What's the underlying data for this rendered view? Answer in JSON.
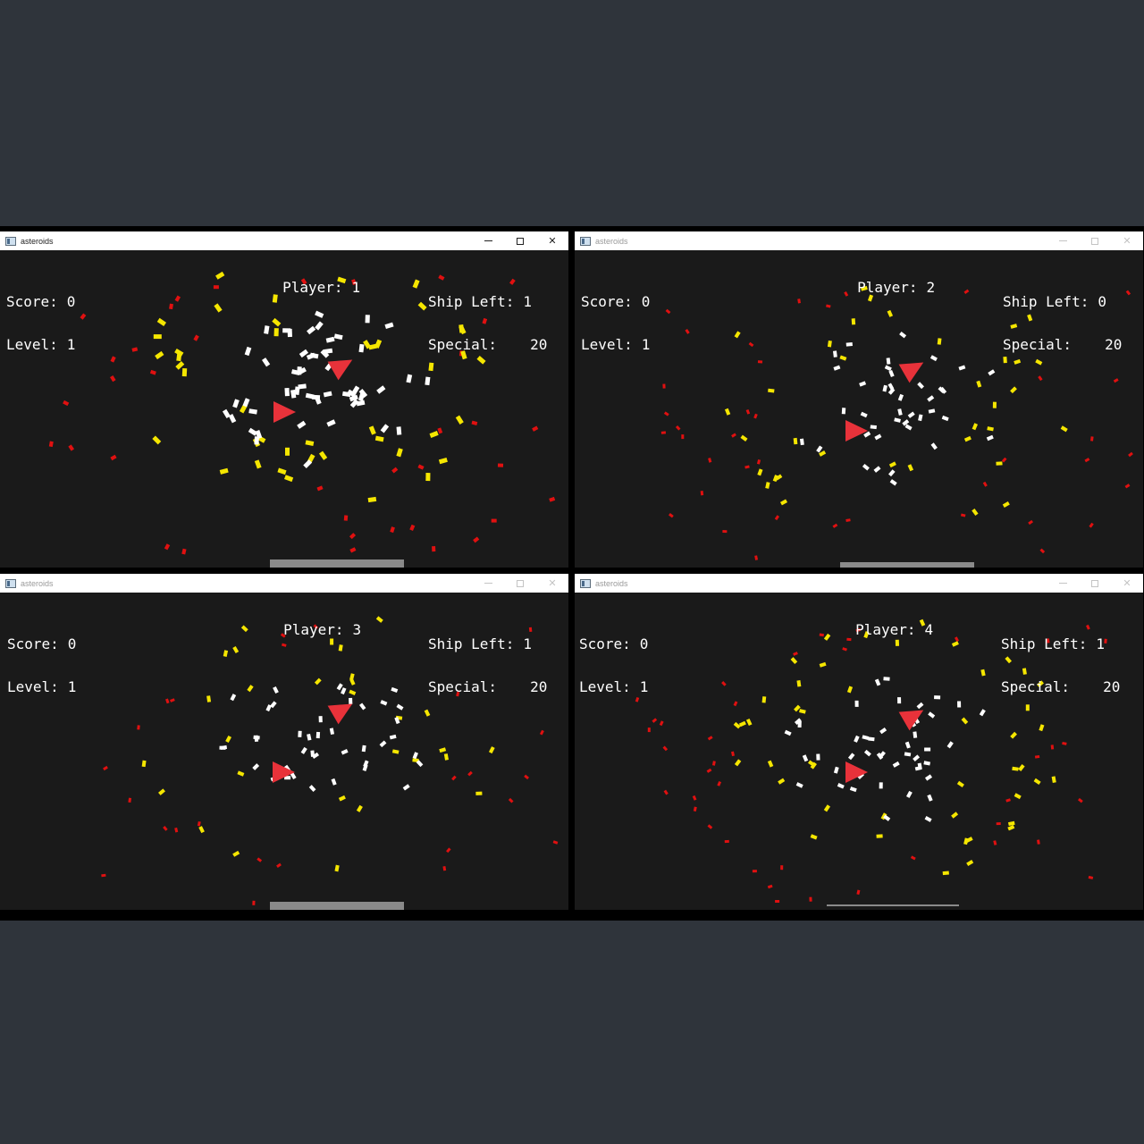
{
  "windows": [
    {
      "title": "asteroids",
      "score_label": "Score:",
      "score": "0",
      "level_label": "Level:",
      "level": "1",
      "player_label": "Player:",
      "player": "1",
      "ships_label": "Ship Left:",
      "ships": "1",
      "special_label": "Special:",
      "special": "20",
      "active": true
    },
    {
      "title": "asteroids",
      "score_label": "Score:",
      "score": "0",
      "level_label": "Level:",
      "level": "1",
      "player_label": "Player:",
      "player": "2",
      "ships_label": "Ship Left:",
      "ships": "0",
      "special_label": "Special:",
      "special": "20",
      "active": false
    },
    {
      "title": "asteroids",
      "score_label": "Score:",
      "score": "0",
      "level_label": "Level:",
      "level": "1",
      "player_label": "Player:",
      "player": "3",
      "ships_label": "Ship Left:",
      "ships": "1",
      "special_label": "Special:",
      "special": "20",
      "active": false
    },
    {
      "title": "asteroids",
      "score_label": "Score:",
      "score": "0",
      "level_label": "Level:",
      "level": "1",
      "player_label": "Player:",
      "player": "4",
      "ships_label": "Ship Left:",
      "ships": "1",
      "special_label": "Special:",
      "special": "20",
      "active": false
    }
  ],
  "window_controls": {
    "minimize": "minimize-icon",
    "maximize": "maximize-icon",
    "close": "✕"
  },
  "colors": {
    "background": "#2f343b",
    "canvas": "#1a1a1a",
    "ship": "#e8323a",
    "particle_white": "#ffffff",
    "particle_yellow": "#f5e600",
    "particle_red": "#e01010",
    "bar": "#8a8a8a"
  }
}
